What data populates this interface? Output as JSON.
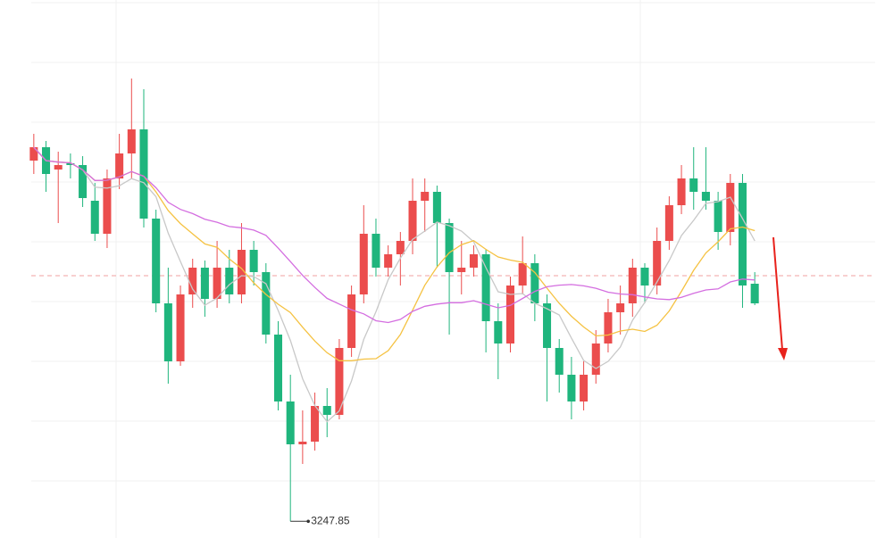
{
  "chart_data": {
    "type": "candlestick",
    "annotation": "3247.85",
    "annotation_index": 21,
    "ylim": [
      3238.5,
      3540
    ],
    "grid": true,
    "up_color": "#eb4d4d",
    "down_color": "#1fb57d",
    "price_line": 3385.5,
    "price_line_color": "#f0a0a0",
    "moving_averages": [
      {
        "period": 5,
        "color": "#c8c8c8"
      },
      {
        "period": 10,
        "color": "#f5c242"
      },
      {
        "period": 20,
        "color": "#d46ee0"
      }
    ],
    "open": [
      3450,
      3457.5,
      3445,
      3448.5,
      3447.5,
      3427.5,
      3409,
      3440,
      3454,
      3467.5,
      3417.5,
      3370,
      3337.5,
      3375,
      3390,
      3372.5,
      3390,
      3375,
      3400,
      3387.5,
      3352.5,
      3315,
      3291,
      3292.5,
      3312.5,
      3307.5,
      3345,
      3375,
      3409,
      3390,
      3397.5,
      3405,
      3427.5,
      3432.5,
      3415,
      3387.5,
      3390,
      3397.5,
      3360,
      3347.5,
      3380,
      3392.5,
      3370,
      3345,
      3330,
      3315,
      3330,
      3347.5,
      3365,
      3370,
      3390,
      3380,
      3405,
      3425,
      3440,
      3432.5,
      3427.5,
      3410,
      3437.5,
      3381
    ],
    "high": [
      3465,
      3461,
      3455,
      3454,
      3452.5,
      3437.5,
      3445,
      3465,
      3496,
      3490,
      3422.5,
      3390,
      3380,
      3395,
      3394,
      3405,
      3400,
      3415,
      3405,
      3392.5,
      3360,
      3330,
      3310,
      3320,
      3322.5,
      3350,
      3380,
      3425,
      3417.5,
      3402.5,
      3410,
      3440,
      3440,
      3436,
      3417.5,
      3405,
      3402.5,
      3400,
      3370,
      3385,
      3407.5,
      3397.5,
      3375,
      3350,
      3340,
      3337.5,
      3355,
      3372.5,
      3380,
      3395,
      3392.5,
      3412.5,
      3430,
      3447.5,
      3457.5,
      3457.5,
      3432.5,
      3442.5,
      3442.5,
      3387.5
    ],
    "low": [
      3442.5,
      3432.5,
      3415,
      3440,
      3424,
      3405,
      3401,
      3434,
      3440,
      3412.5,
      3365,
      3325,
      3335,
      3367.5,
      3362.5,
      3367.5,
      3370,
      3370,
      3380,
      3347.5,
      3310,
      3247.85,
      3280,
      3287.5,
      3295,
      3305,
      3340,
      3370,
      3385,
      3385,
      3380,
      3397.5,
      3410,
      3390,
      3352.5,
      3375,
      3385,
      3342.5,
      3327.5,
      3342.5,
      3375,
      3360,
      3315,
      3320,
      3305,
      3310,
      3325,
      3342.5,
      3352.5,
      3362.5,
      3370,
      3375,
      3400,
      3420,
      3422.5,
      3422.5,
      3400,
      3402.5,
      3367.5,
      3369
    ],
    "close": [
      3457.5,
      3442.5,
      3447.5,
      3447.5,
      3429,
      3409,
      3440,
      3454,
      3467.5,
      3417.5,
      3370,
      3337.5,
      3375,
      3390,
      3372.5,
      3390,
      3375,
      3400,
      3387.5,
      3352.5,
      3315,
      3291,
      3292.5,
      3312.5,
      3307.5,
      3345,
      3375,
      3409,
      3390,
      3397.5,
      3405,
      3427.5,
      3432.5,
      3415,
      3387.5,
      3390,
      3397.5,
      3360,
      3347.5,
      3380,
      3392.5,
      3370,
      3345,
      3330,
      3315,
      3330,
      3347.5,
      3365,
      3370,
      3390,
      3380,
      3405,
      3425,
      3440,
      3432.5,
      3427.5,
      3410,
      3437.5,
      3380,
      3370
    ]
  }
}
